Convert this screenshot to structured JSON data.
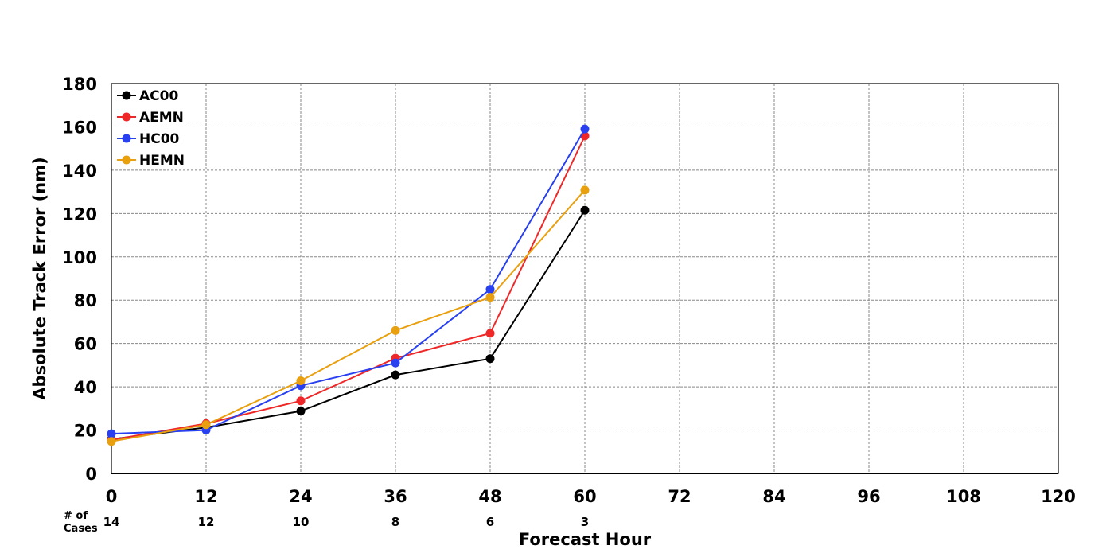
{
  "chart_data": {
    "type": "line",
    "xlabel": "Forecast Hour",
    "ylabel": "Absolute Track Error (nm)",
    "xlim": [
      0,
      120
    ],
    "ylim": [
      0,
      180
    ],
    "x_ticks": [
      0,
      12,
      24,
      36,
      48,
      60,
      72,
      84,
      96,
      108,
      120
    ],
    "y_ticks": [
      0,
      20,
      40,
      60,
      80,
      100,
      120,
      140,
      160,
      180
    ],
    "grid": true,
    "legend_position": "top-left",
    "cases_label": [
      "# of",
      "Cases"
    ],
    "cases": [
      {
        "x": 0,
        "n": "14"
      },
      {
        "x": 12,
        "n": "12"
      },
      {
        "x": 24,
        "n": "10"
      },
      {
        "x": 36,
        "n": "8"
      },
      {
        "x": 48,
        "n": "6"
      },
      {
        "x": 60,
        "n": "3"
      }
    ],
    "x": [
      0,
      12,
      24,
      36,
      48,
      60
    ],
    "series": [
      {
        "name": "AC00",
        "color": "#000000",
        "values": [
          15.8,
          21.2,
          28.8,
          45.5,
          53.0,
          121.5
        ]
      },
      {
        "name": "AEMN",
        "color": "#ee2828",
        "values": [
          15.5,
          23.0,
          33.5,
          53.2,
          64.7,
          155.8
        ]
      },
      {
        "name": "HC00",
        "color": "#2840f0",
        "values": [
          18.3,
          20.0,
          40.5,
          51.0,
          85.0,
          159.0
        ]
      },
      {
        "name": "HEMN",
        "color": "#e8a010",
        "values": [
          14.8,
          22.5,
          42.8,
          66.0,
          81.3,
          130.8
        ]
      }
    ]
  }
}
